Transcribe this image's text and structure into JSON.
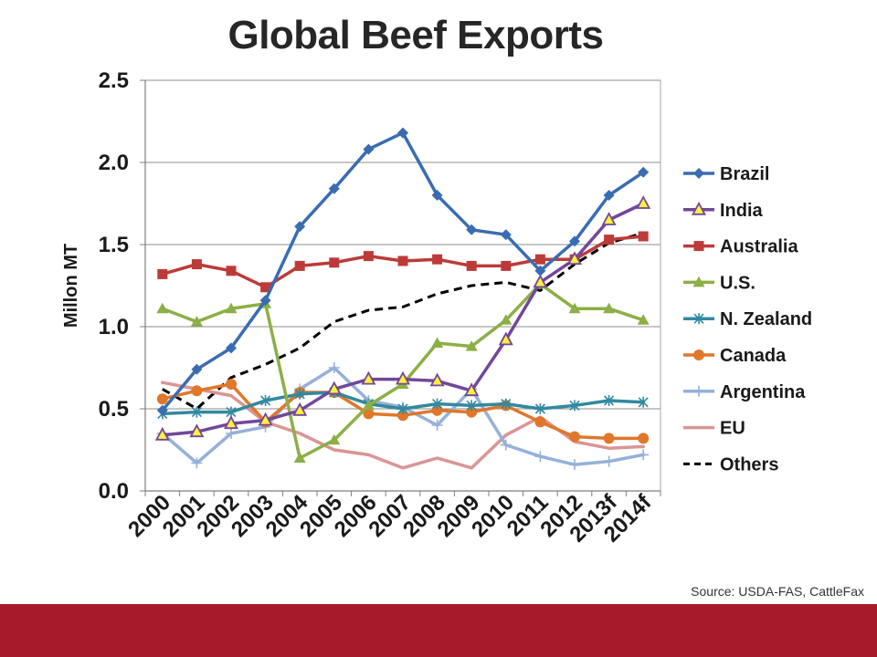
{
  "slide": {
    "title": "Global Beef Exports",
    "source": "Source: USDA-FAS, CattleFax",
    "footer_color": "#a71a2b"
  },
  "chart_data": {
    "type": "line",
    "title": "Global Beef Exports",
    "ylabel": "Millon MT",
    "xlabel": "",
    "ylim": [
      0,
      2.5
    ],
    "yticks": [
      0,
      0.5,
      1.0,
      1.5,
      2.0,
      2.5
    ],
    "ytick_labels": [
      "0.0",
      "0.5",
      "1.0",
      "1.5",
      "2.0",
      "2.5"
    ],
    "grid": "horizontal",
    "legend_position": "right",
    "categories": [
      "2000",
      "2001",
      "2002",
      "2003",
      "2004",
      "2005",
      "2006",
      "2007",
      "2008",
      "2009",
      "2010",
      "2011",
      "2012",
      "2013f",
      "2014f"
    ],
    "series": [
      {
        "name": "Brazil",
        "color": "#3a6cb1",
        "marker": "diamond",
        "values": [
          0.49,
          0.74,
          0.87,
          1.16,
          1.61,
          1.84,
          2.08,
          2.18,
          1.8,
          1.59,
          1.56,
          1.34,
          1.52,
          1.8,
          1.94
        ]
      },
      {
        "name": "India",
        "color": "#72479a",
        "marker": "triangle-yellow",
        "values": [
          0.34,
          0.36,
          0.41,
          0.43,
          0.49,
          0.62,
          0.68,
          0.68,
          0.67,
          0.61,
          0.92,
          1.27,
          1.41,
          1.65,
          1.75
        ]
      },
      {
        "name": "Australia",
        "color": "#bc3b38",
        "marker": "square",
        "values": [
          1.32,
          1.38,
          1.34,
          1.24,
          1.37,
          1.39,
          1.43,
          1.4,
          1.41,
          1.37,
          1.37,
          1.41,
          1.41,
          1.53,
          1.55
        ]
      },
      {
        "name": "U.S.",
        "color": "#8caf46",
        "marker": "triangle",
        "values": [
          1.11,
          1.03,
          1.11,
          1.14,
          0.2,
          0.31,
          0.52,
          0.65,
          0.9,
          0.88,
          1.04,
          1.26,
          1.11,
          1.11,
          1.04
        ]
      },
      {
        "name": "N. Zealand",
        "color": "#31899f",
        "marker": "asterisk",
        "values": [
          0.47,
          0.48,
          0.48,
          0.55,
          0.59,
          0.6,
          0.53,
          0.5,
          0.53,
          0.52,
          0.53,
          0.5,
          0.52,
          0.55,
          0.54
        ]
      },
      {
        "name": "Canada",
        "color": "#e0772a",
        "marker": "circle",
        "values": [
          0.56,
          0.61,
          0.65,
          0.42,
          0.6,
          0.6,
          0.47,
          0.46,
          0.49,
          0.48,
          0.52,
          0.42,
          0.33,
          0.32,
          0.32
        ]
      },
      {
        "name": "Argentina",
        "color": "#95b1d8",
        "marker": "plus",
        "values": [
          0.35,
          0.17,
          0.35,
          0.39,
          0.62,
          0.75,
          0.55,
          0.51,
          0.4,
          0.62,
          0.28,
          0.21,
          0.16,
          0.18,
          0.22
        ]
      },
      {
        "name": "EU",
        "color": "#d99594",
        "marker": "none",
        "values": [
          0.66,
          0.62,
          0.58,
          0.42,
          0.35,
          0.25,
          0.22,
          0.14,
          0.2,
          0.14,
          0.34,
          0.45,
          0.3,
          0.26,
          0.27
        ]
      },
      {
        "name": "Others",
        "color": "#000000",
        "marker": "none",
        "dashed": true,
        "values": [
          0.62,
          0.5,
          0.69,
          0.77,
          0.87,
          1.03,
          1.1,
          1.12,
          1.2,
          1.25,
          1.27,
          1.22,
          1.38,
          1.51,
          1.57
        ]
      }
    ]
  }
}
